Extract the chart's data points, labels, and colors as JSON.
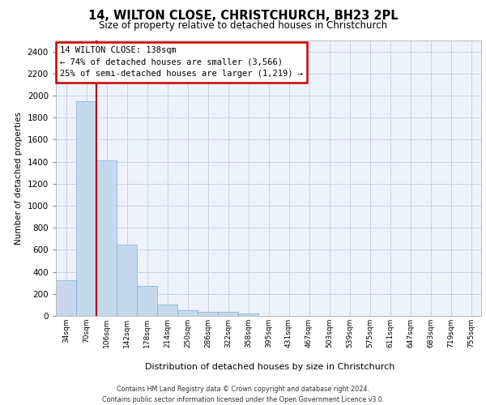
{
  "title": "14, WILTON CLOSE, CHRISTCHURCH, BH23 2PL",
  "subtitle": "Size of property relative to detached houses in Christchurch",
  "xlabel": "Distribution of detached houses by size in Christchurch",
  "ylabel": "Number of detached properties",
  "bar_values": [
    325,
    1950,
    1410,
    650,
    275,
    105,
    48,
    40,
    35,
    22,
    0,
    0,
    0,
    0,
    0,
    0,
    0,
    0,
    0,
    0,
    0
  ],
  "bar_labels": [
    "34sqm",
    "70sqm",
    "106sqm",
    "142sqm",
    "178sqm",
    "214sqm",
    "250sqm",
    "286sqm",
    "322sqm",
    "358sqm",
    "395sqm",
    "431sqm",
    "467sqm",
    "503sqm",
    "539sqm",
    "575sqm",
    "611sqm",
    "647sqm",
    "683sqm",
    "719sqm",
    "755sqm"
  ],
  "bar_color": "#c5d8ed",
  "bar_edge_color": "#7aafd4",
  "vline_x": 2,
  "vline_color": "#aa0000",
  "ylim": [
    0,
    2500
  ],
  "yticks": [
    0,
    200,
    400,
    600,
    800,
    1000,
    1200,
    1400,
    1600,
    1800,
    2000,
    2200,
    2400
  ],
  "annotation_title": "14 WILTON CLOSE: 138sqm",
  "annotation_line1": "← 74% of detached houses are smaller (3,566)",
  "annotation_line2": "25% of semi-detached houses are larger (1,219) →",
  "annotation_box_color": "#ffffff",
  "annotation_box_edge": "#cc0000",
  "footer1": "Contains HM Land Registry data © Crown copyright and database right 2024.",
  "footer2": "Contains public sector information licensed under the Open Government Licence v3.0.",
  "background_color": "#eef2fc",
  "grid_color": "#c8d0e8"
}
